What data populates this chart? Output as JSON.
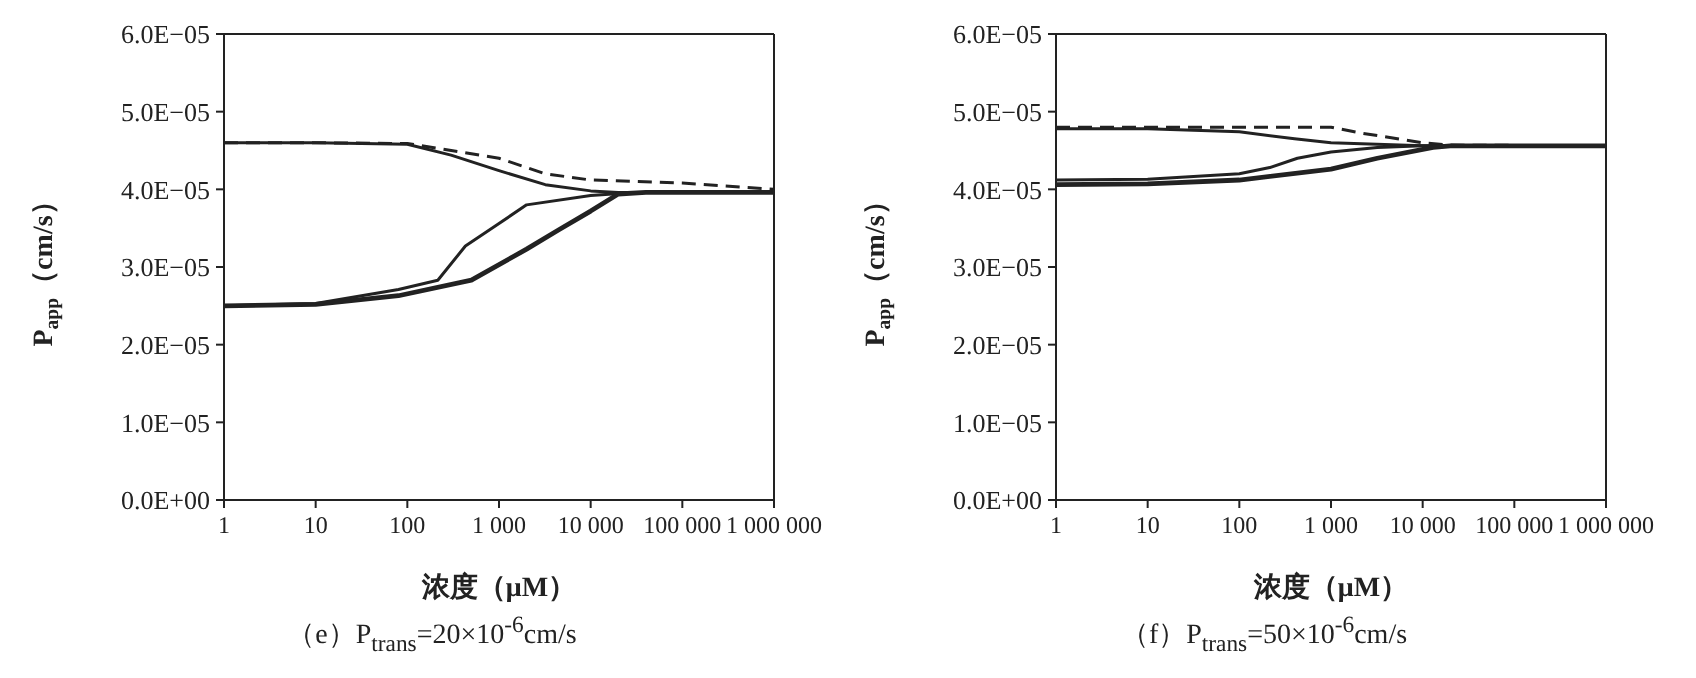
{
  "chart_data": [
    {
      "type": "line",
      "title": "（e）P$_{trans}$=20×10$^{-6}$cm/s",
      "xlabel": "浓度（μM）",
      "ylabel": "P$_{app}$（cm/s）",
      "log": "x",
      "marker": "none",
      "xlim": [
        1,
        1000000
      ],
      "xticks": [
        1,
        10,
        100,
        {
          "value": 1000,
          "label": "1 000"
        },
        {
          "value": 10000,
          "label": "10 000"
        },
        {
          "value": 100000,
          "label": "100 000"
        },
        {
          "value": 1000000,
          "label": "1 000 000"
        }
      ],
      "ylim": [
        0,
        6e-05
      ],
      "yticks": [
        {
          "value": 0,
          "label": "0.0E+00"
        },
        {
          "value": 1e-05,
          "label": "1.0E−05"
        },
        {
          "value": 2e-05,
          "label": "2.0E−05"
        },
        {
          "value": 3e-05,
          "label": "3.0E−05"
        },
        {
          "value": 4e-05,
          "label": "4.0E−05"
        },
        {
          "value": 5e-05,
          "label": "5.0E−05"
        },
        {
          "value": 6e-05,
          "label": "6.0E−05"
        }
      ],
      "series": [
        {
          "color": "#222222",
          "line_style": "dashed",
          "x": [
            1,
            10,
            100,
            1000,
            3200,
            10000,
            100000,
            1000000
          ],
          "values": [
            4.6e-05,
            4.6e-05,
            4.59e-05,
            4.4e-05,
            4.2e-05,
            4.12e-05,
            4.08e-05,
            4e-05
          ]
        },
        {
          "color": "#222222",
          "line_style": "solid",
          "x": [
            1,
            10,
            100,
            300,
            1000,
            3200,
            10000,
            20000,
            1000000
          ],
          "values": [
            4.6e-05,
            4.6e-05,
            4.58e-05,
            4.44e-05,
            4.24e-05,
            4.06e-05,
            3.98e-05,
            3.96e-05,
            3.96e-05
          ]
        },
        {
          "color": "#222222",
          "line_style": "solid",
          "x": [
            1,
            10,
            80,
            215,
            430,
            1000,
            2000,
            10000,
            30000,
            1000000
          ],
          "values": [
            2.5e-05,
            2.53e-05,
            2.71e-05,
            2.83e-05,
            3.27e-05,
            3.56e-05,
            3.8e-05,
            3.92e-05,
            3.96e-05,
            3.96e-05
          ]
        },
        {
          "color": "#222222",
          "line_style": "solid",
          "x": [
            1,
            10,
            80,
            500,
            2000,
            4500,
            10000,
            20000,
            40000,
            1000000
          ],
          "values": [
            2.5e-05,
            2.52e-05,
            2.63e-05,
            2.83e-05,
            3.23e-05,
            3.48e-05,
            3.72e-05,
            3.94e-05,
            3.96e-05,
            3.96e-05
          ]
        }
      ]
    },
    {
      "type": "line",
      "title": "（f）P$_{trans}$=50×10$^{-6}$cm/s",
      "xlabel": "浓度（μM）",
      "ylabel": "P$_{app}$（cm/s）",
      "log": "x",
      "marker": "none",
      "xlim": [
        1,
        1000000
      ],
      "xticks": [
        1,
        10,
        100,
        {
          "value": 1000,
          "label": "1 000"
        },
        {
          "value": 10000,
          "label": "10 000"
        },
        {
          "value": 100000,
          "label": "100 000"
        },
        {
          "value": 1000000,
          "label": "1 000 000"
        }
      ],
      "ylim": [
        0,
        6e-05
      ],
      "yticks": [
        {
          "value": 0,
          "label": "0.0E+00"
        },
        {
          "value": 1e-05,
          "label": "1.0E−05"
        },
        {
          "value": 2e-05,
          "label": "2.0E−05"
        },
        {
          "value": 3e-05,
          "label": "3.0E−05"
        },
        {
          "value": 4e-05,
          "label": "4.0E−05"
        },
        {
          "value": 5e-05,
          "label": "5.0E−05"
        },
        {
          "value": 6e-05,
          "label": "6.0E−05"
        }
      ],
      "series": [
        {
          "color": "#222222",
          "line_style": "dashed",
          "x": [
            1,
            10,
            100,
            1000,
            2000,
            10000,
            20000,
            1000000
          ],
          "values": [
            4.8e-05,
            4.8e-05,
            4.8e-05,
            4.8e-05,
            4.73e-05,
            4.6e-05,
            4.57e-05,
            4.56e-05
          ]
        },
        {
          "color": "#222222",
          "line_style": "solid",
          "x": [
            1,
            10,
            100,
            400,
            1000,
            10000,
            1000000
          ],
          "values": [
            4.78e-05,
            4.78e-05,
            4.74e-05,
            4.65e-05,
            4.6e-05,
            4.56e-05,
            4.56e-05
          ]
        },
        {
          "color": "#222222",
          "line_style": "solid",
          "x": [
            1,
            10,
            100,
            215,
            430,
            1000,
            3200,
            10000,
            1000000
          ],
          "values": [
            4.12e-05,
            4.13e-05,
            4.2e-05,
            4.28e-05,
            4.4e-05,
            4.48e-05,
            4.54e-05,
            4.56e-05,
            4.56e-05
          ]
        },
        {
          "color": "#222222",
          "line_style": "solid",
          "x": [
            1,
            10,
            100,
            1000,
            3200,
            13000,
            20000,
            1000000
          ],
          "values": [
            4.06e-05,
            4.07e-05,
            4.12e-05,
            4.26e-05,
            4.4e-05,
            4.54e-05,
            4.56e-05,
            4.56e-05
          ]
        }
      ]
    }
  ]
}
